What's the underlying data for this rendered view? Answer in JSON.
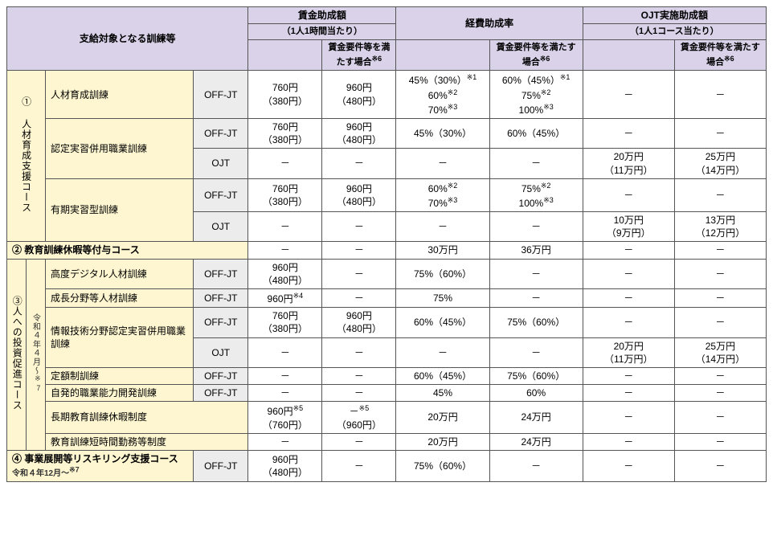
{
  "headers": {
    "training": "支給対象となる訓練等",
    "wage_group": "賃金助成額",
    "wage_sub": "（1人1時間当たり）",
    "wage_cond": "賃金要件等を満たす場合※6",
    "expense_group": "経費助成率",
    "expense_cond": "賃金要件等を満たす場合※6",
    "ojt_group": "OJT実施助成額",
    "ojt_sub": "（1人1コース当たり）",
    "ojt_cond": "賃金要件等を満たす場合※6"
  },
  "catheads": {
    "c1": "① 人材育成支援コース",
    "c2": "② 教育訓練休暇等付与コース",
    "c3": "③人への投資促進コース",
    "c3_note": "令和４年４月～※7",
    "c4": "④ 事業展開等リスキリング支援コース",
    "c4_note": "令和４年12月～※7"
  },
  "rows": {
    "r1": {
      "name": "人材育成訓練",
      "type": "OFF-JT",
      "wage1": "760円\n（380円）",
      "wage2": "960円\n（480円）",
      "exp1": "45%（30%）※1\n60%※2\n70%※3",
      "exp2": "60%（45%）※1\n75%※2\n100%※3",
      "ojt1": "－",
      "ojt2": "－"
    },
    "r2a": {
      "name": "認定実習併用職業訓練",
      "type": "OFF-JT",
      "wage1": "760円\n（380円）",
      "wage2": "960円\n（480円）",
      "exp1": "45%（30%）",
      "exp2": "60%（45%）",
      "ojt1": "－",
      "ojt2": "－"
    },
    "r2b": {
      "type": "OJT",
      "wage1": "－",
      "wage2": "－",
      "exp1": "－",
      "exp2": "－",
      "ojt1": "20万円\n（11万円）",
      "ojt2": "25万円\n（14万円）"
    },
    "r3a": {
      "name": "有期実習型訓練",
      "type": "OFF-JT",
      "wage1": "760円\n（380円）",
      "wage2": "960円\n（480円）",
      "exp1": "60%※2\n70%※3",
      "exp2": "75%※2\n100%※3",
      "ojt1": "－",
      "ojt2": "－"
    },
    "r3b": {
      "type": "OJT",
      "wage1": "－",
      "wage2": "－",
      "exp1": "－",
      "exp2": "－",
      "ojt1": "10万円\n（9万円）",
      "ojt2": "13万円\n（12万円）"
    },
    "r4": {
      "wage1": "－",
      "wage2": "－",
      "exp1": "30万円",
      "exp2": "36万円",
      "ojt1": "－",
      "ojt2": "－"
    },
    "r5": {
      "name": "高度デジタル人材訓練",
      "type": "OFF-JT",
      "wage1": "960円\n（480円）",
      "wage2": "－",
      "exp1": "75%（60%）",
      "exp2": "－",
      "ojt1": "－",
      "ojt2": "－"
    },
    "r6": {
      "name": "成長分野等人材訓練",
      "type": "OFF-JT",
      "wage1": "960円※4",
      "wage2": "－",
      "exp1": "75%",
      "exp2": "－",
      "ojt1": "－",
      "ojt2": "－"
    },
    "r7a": {
      "name": "情報技術分野認定実習併用職業訓練",
      "type": "OFF-JT",
      "wage1": "760円\n（380円）",
      "wage2": "960円\n（480円）",
      "exp1": "60%（45%）",
      "exp2": "75%（60%）",
      "ojt1": "－",
      "ojt2": "－"
    },
    "r7b": {
      "type": "OJT",
      "wage1": "－",
      "wage2": "－",
      "exp1": "－",
      "exp2": "－",
      "ojt1": "20万円\n（11万円）",
      "ojt2": "25万円\n（14万円）"
    },
    "r8": {
      "name": "定額制訓練",
      "type": "OFF-JT",
      "wage1": "－",
      "wage2": "－",
      "exp1": "60%（45%）",
      "exp2": "75%（60%）",
      "ojt1": "－",
      "ojt2": "－"
    },
    "r9": {
      "name": "自発的職業能力開発訓練",
      "type": "OFF-JT",
      "wage1": "－",
      "wage2": "－",
      "exp1": "45%",
      "exp2": "60%",
      "ojt1": "－",
      "ojt2": "－"
    },
    "r10": {
      "name": "長期教育訓練休暇制度",
      "wage1": "960円※5\n（760円）",
      "wage2": "－※5\n（960円）",
      "exp1": "20万円",
      "exp2": "24万円",
      "ojt1": "－",
      "ojt2": "－"
    },
    "r11": {
      "name": "教育訓練短時間勤務等制度",
      "wage1": "－",
      "wage2": "－",
      "exp1": "20万円",
      "exp2": "24万円",
      "ojt1": "－",
      "ojt2": "－"
    },
    "r12": {
      "type": "OFF-JT",
      "wage1": "960円\n（480円）",
      "wage2": "－",
      "exp1": "75%（60%）",
      "exp2": "－",
      "ojt1": "－",
      "ojt2": "－"
    }
  }
}
